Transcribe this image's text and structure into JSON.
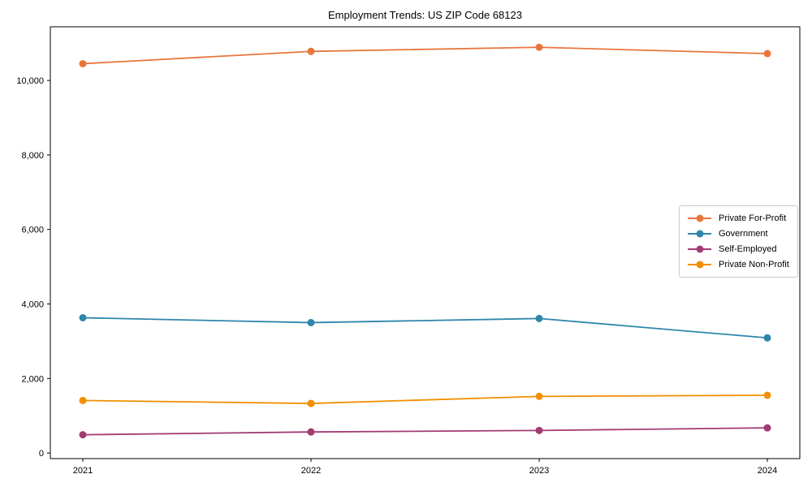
{
  "chart_data": {
    "type": "line",
    "title": "Employment Trends: US ZIP Code 68123",
    "x": [
      2021,
      2022,
      2023,
      2024
    ],
    "x_tick_labels": [
      "2021",
      "2022",
      "2023",
      "2024"
    ],
    "y_ticks": [
      0,
      2000,
      4000,
      6000,
      8000,
      10000
    ],
    "y_tick_labels": [
      "0",
      "2,000",
      "4,000",
      "6,000",
      "8,000",
      "10,000"
    ],
    "xlabel": "",
    "ylabel": "",
    "ylim": [
      -150,
      11440
    ],
    "grid": false,
    "legend_position": "center-right",
    "axis_color": "#000000",
    "series": [
      {
        "name": "Private For-Profit",
        "color": "#E8763C",
        "values": [
          10450,
          10780,
          10890,
          10720
        ]
      },
      {
        "name": "Government",
        "color": "#2E86AB",
        "values": [
          3630,
          3500,
          3610,
          3090
        ]
      },
      {
        "name": "Self-Employed",
        "color": "#A23B72",
        "values": [
          490,
          565,
          605,
          675
        ]
      },
      {
        "name": "Private Non-Profit",
        "color": "#F18F01",
        "values": [
          1410,
          1330,
          1520,
          1550
        ]
      }
    ]
  }
}
